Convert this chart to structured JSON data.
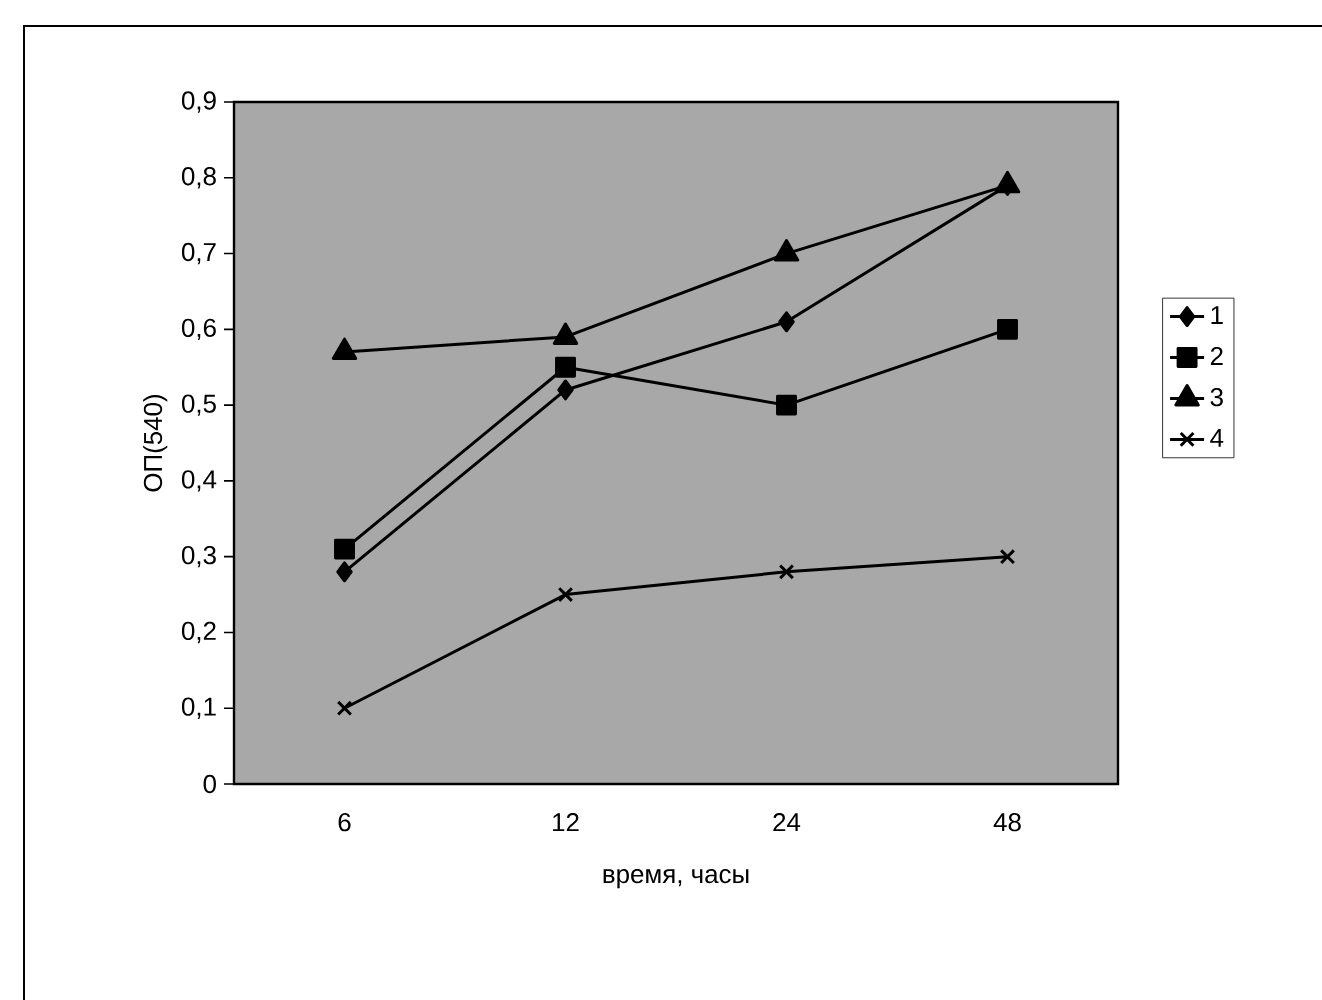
{
  "chart_data": {
    "type": "line",
    "xlabel": "время, часы",
    "ylabel": "ОП(540)",
    "categories": [
      "6",
      "12",
      "24",
      "48"
    ],
    "series": [
      {
        "name": "1",
        "color": "#000000",
        "marker": "diamond",
        "values": [
          0.28,
          0.52,
          0.61,
          0.79
        ]
      },
      {
        "name": "2",
        "color": "#000000",
        "marker": "square",
        "values": [
          0.31,
          0.55,
          0.5,
          0.6
        ]
      },
      {
        "name": "3",
        "color": "#000000",
        "marker": "triangle",
        "values": [
          0.57,
          0.59,
          0.7,
          0.79
        ]
      },
      {
        "name": "4",
        "color": "#000000",
        "marker": "cross",
        "values": [
          0.1,
          0.25,
          0.28,
          0.3
        ]
      }
    ],
    "ylim": [
      0,
      0.9
    ],
    "yticks": [
      0,
      {
        "value": 0.1,
        "label": "0,1"
      },
      {
        "value": 0.2,
        "label": "0,2"
      },
      {
        "value": 0.3,
        "label": "0,3"
      },
      {
        "value": 0.4,
        "label": "0,4"
      },
      {
        "value": 0.5,
        "label": "0,5"
      },
      {
        "value": 0.6,
        "label": "0,6"
      },
      {
        "value": 0.7,
        "label": "0,7"
      },
      {
        "value": 0.8,
        "label": "0,8"
      },
      {
        "value": 0.9,
        "label": "0,9"
      }
    ],
    "grid": false,
    "legend": "right",
    "line_style": "solid"
  }
}
